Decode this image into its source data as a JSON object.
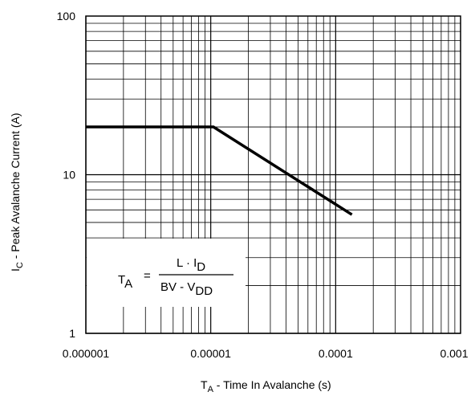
{
  "chart_data": {
    "type": "line",
    "xlabel": {
      "main": "T",
      "sub": "A",
      "rest": " -  Time In Avalanche (s)"
    },
    "ylabel": {
      "main": "I",
      "sub": "C",
      "rest": " -  Peak Avalanche Current (A)"
    },
    "x_scale": "log",
    "y_scale": "log",
    "xlim": [
      1e-06,
      0.001
    ],
    "ylim": [
      1,
      100
    ],
    "x_ticks": [
      {
        "value": 1e-06,
        "label": "0.000001"
      },
      {
        "value": 1e-05,
        "label": "0.00001"
      },
      {
        "value": 0.0001,
        "label": "0.0001"
      },
      {
        "value": 0.001,
        "label": "0.001"
      }
    ],
    "y_ticks": [
      {
        "value": 1,
        "label": "1"
      },
      {
        "value": 10,
        "label": "10"
      },
      {
        "value": 100,
        "label": "100"
      }
    ],
    "grid": true,
    "series": [
      {
        "points": [
          {
            "x": 1e-06,
            "y": 20
          },
          {
            "x": 1.05e-05,
            "y": 20
          },
          {
            "x": 0.000135,
            "y": 5.6
          }
        ]
      }
    ],
    "annotation": {
      "lhs_main": "T",
      "lhs_sub": "A",
      "equals": "=",
      "num_main": "L · I",
      "num_sub": "D",
      "den_main": "BV - V",
      "den_sub": "DD"
    }
  }
}
